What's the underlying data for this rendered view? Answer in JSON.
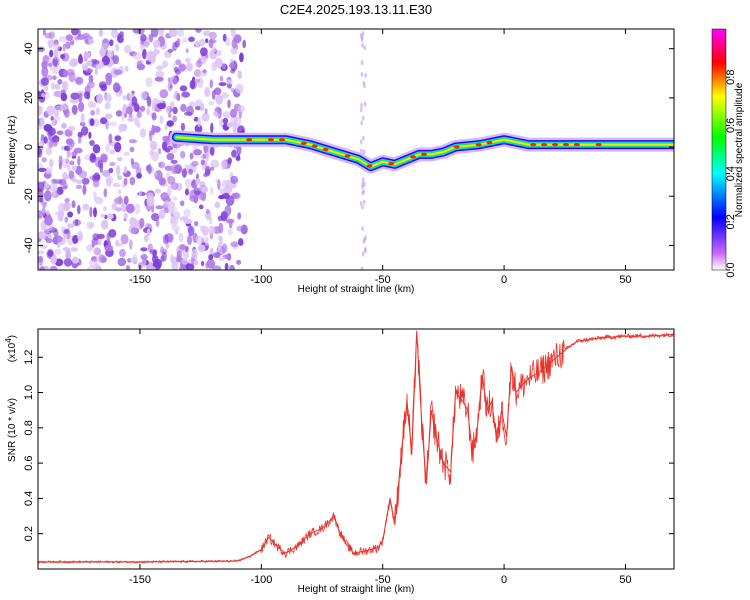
{
  "title": "C2E4.2025.193.13.11.E30",
  "colors": {
    "series_line": "#e8332b",
    "noise": "#8a4be0",
    "frame": "#000000"
  },
  "chart_data": [
    {
      "type": "heatmap",
      "xlabel": "Height of straight line (km)",
      "ylabel": "Frequency (Hz)",
      "xlim": [
        -192,
        70
      ],
      "ylim": [
        -50,
        48
      ],
      "xticks": [
        -150,
        -100,
        -50,
        0,
        50
      ],
      "yticks": [
        -40,
        -20,
        0,
        20,
        40
      ],
      "colorbar": {
        "label": "Normalized spectral amplitude",
        "range": [
          0,
          1
        ],
        "ticks": [
          "0.0",
          "0.2",
          "0.4",
          "0.6",
          "0.8"
        ],
        "colormap": [
          "#ffffff",
          "#cc66ff",
          "#0000ff",
          "#00ffff",
          "#00ff00",
          "#ffff00",
          "#ff0000",
          "#ff00ff"
        ]
      },
      "ridge": {
        "x": [
          -135,
          -120,
          -100,
          -90,
          -80,
          -70,
          -60,
          -55,
          -50,
          -45,
          -40,
          -35,
          -30,
          -25,
          -20,
          -10,
          0,
          10,
          20,
          30,
          50,
          70
        ],
        "frequency": [
          4,
          3,
          3,
          3,
          1,
          -2,
          -5,
          -8,
          -6,
          -7,
          -5,
          -3,
          -3,
          -2,
          0,
          1,
          3,
          1,
          1,
          1,
          1,
          1
        ]
      }
    },
    {
      "type": "line",
      "xlabel": "Height of straight line (km)",
      "ylabel": "SNR (10 * v/v)",
      "y_multiplier": "(x10",
      "y_multiplier_exp": "4",
      "xlim": [
        -192,
        70
      ],
      "ylim": [
        0,
        13600
      ],
      "xticks": [
        -150,
        -100,
        -50,
        0,
        50
      ],
      "yticks": [
        0.2,
        0.4,
        0.6,
        0.8,
        1.0,
        1.2
      ],
      "series": [
        {
          "x": [
            -192,
            -150,
            -110,
            -105,
            -100,
            -97,
            -93,
            -90,
            -85,
            -80,
            -75,
            -72,
            -70,
            -68,
            -65,
            -62,
            -58,
            -55,
            -52,
            -50,
            -47,
            -45,
            -42,
            -40,
            -38,
            -36,
            -34,
            -33,
            -32,
            -30,
            -28,
            -25,
            -22,
            -20,
            -17,
            -15,
            -13,
            -11,
            -9,
            -7,
            -5,
            -3,
            -1,
            1,
            3,
            5,
            8,
            10,
            15,
            20,
            25,
            30,
            40,
            50,
            60,
            70
          ],
          "y": [
            400,
            400,
            450,
            700,
            1100,
            1800,
            1200,
            900,
            1300,
            2000,
            2300,
            2700,
            3000,
            2200,
            1400,
            900,
            1000,
            1100,
            1200,
            1600,
            4000,
            2500,
            7000,
            9500,
            6500,
            13500,
            8500,
            6500,
            4800,
            9000,
            7500,
            6000,
            5500,
            10000,
            9500,
            9000,
            6500,
            8000,
            11000,
            9000,
            9500,
            7200,
            9000,
            7500,
            11500,
            10000,
            10500,
            10800,
            11200,
            11800,
            12400,
            12900,
            13100,
            13200,
            13200,
            13300
          ]
        }
      ]
    }
  ]
}
